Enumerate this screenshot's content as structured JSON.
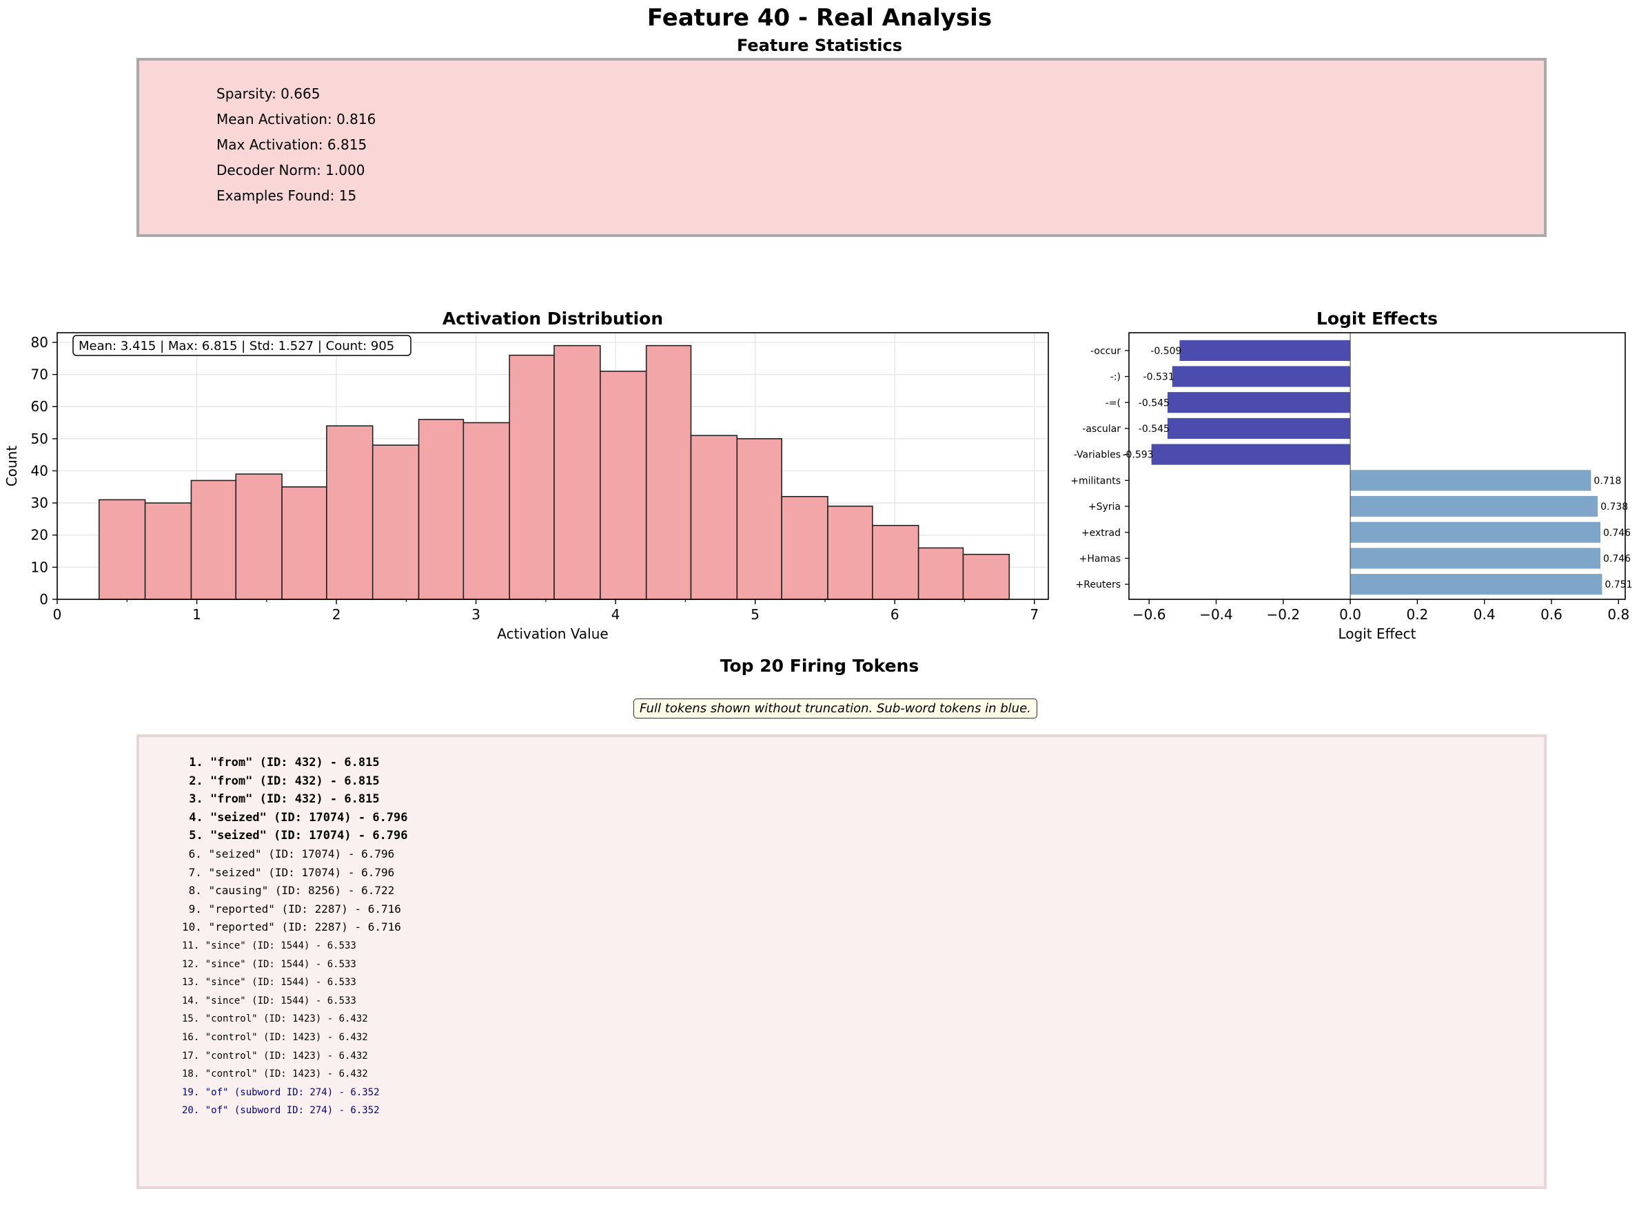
{
  "title": "Feature 40 - Real Analysis",
  "stats": {
    "heading": "Feature Statistics",
    "lines": [
      "Sparsity: 0.665",
      "Mean Activation: 0.816",
      "Max Activation: 6.815",
      "Decoder Norm: 1.000",
      "Examples Found: 15"
    ]
  },
  "chart_data": [
    {
      "type": "bar",
      "title": "Activation Distribution",
      "xlabel": "Activation Value",
      "ylabel": "Count",
      "annotation": "Mean: 3.415 | Max: 6.815 | Std: 1.527 | Count: 905",
      "bin_edges": [
        0.3,
        0.63,
        0.96,
        1.28,
        1.61,
        1.93,
        2.26,
        2.59,
        2.91,
        3.24,
        3.56,
        3.89,
        4.22,
        4.54,
        4.87,
        5.19,
        5.52,
        5.84,
        6.17,
        6.49,
        6.82
      ],
      "values": [
        31,
        30,
        37,
        39,
        35,
        54,
        48,
        56,
        55,
        76,
        79,
        71,
        79,
        51,
        50,
        32,
        29,
        23,
        16,
        14
      ],
      "xlim": [
        0,
        7.1
      ],
      "ylim": [
        0,
        83
      ],
      "xticks": [
        0,
        1,
        2,
        3,
        4,
        5,
        6,
        7
      ],
      "yticks": [
        0,
        10,
        20,
        30,
        40,
        50,
        60,
        70,
        80
      ],
      "grid": true,
      "colors": {
        "bar": "#f2a6a8",
        "edge": "#222222"
      }
    },
    {
      "type": "bar",
      "orientation": "horizontal",
      "title": "Logit Effects",
      "xlabel": "Logit Effect",
      "categories": [
        "-occur",
        "-:)",
        "-=(",
        "-ascular",
        "-Variables",
        "+militants",
        "+Syria",
        "+extrad",
        "+Hamas",
        "+Reuters"
      ],
      "values": [
        -0.509,
        -0.531,
        -0.545,
        -0.545,
        -0.593,
        0.718,
        0.738,
        0.746,
        0.746,
        0.751
      ],
      "value_labels": [
        "-0.509",
        "-0.531",
        "-0.545",
        "-0.545",
        "-0.593",
        "0.718",
        "0.738",
        "0.746",
        "0.746",
        "0.751"
      ],
      "xlim": [
        -0.66,
        0.82
      ],
      "xticks": [
        -0.6,
        -0.4,
        -0.2,
        0.0,
        0.2,
        0.4,
        0.6,
        0.8
      ],
      "xtick_labels": [
        "−0.6",
        "−0.4",
        "−0.2",
        "0.0",
        "0.2",
        "0.4",
        "0.6",
        "0.8"
      ],
      "colors": {
        "negative": "#4b4cad",
        "positive": "#7ea6c9"
      }
    }
  ],
  "tokens": {
    "title": "Top 20 Firing Tokens",
    "note": "Full tokens shown without truncation. Sub-word tokens in blue.",
    "colors": {
      "normal": "#000000",
      "subword": "#00008b"
    },
    "items": [
      {
        "text": " 1. \"from\" (ID: 432) - 6.815",
        "bold": true,
        "size": 17,
        "subword": false
      },
      {
        "text": " 2. \"from\" (ID: 432) - 6.815",
        "bold": true,
        "size": 17,
        "subword": false
      },
      {
        "text": " 3. \"from\" (ID: 432) - 6.815",
        "bold": true,
        "size": 17,
        "subword": false
      },
      {
        "text": " 4. \"seized\" (ID: 17074) - 6.796",
        "bold": true,
        "size": 17,
        "subword": false
      },
      {
        "text": " 5. \"seized\" (ID: 17074) - 6.796",
        "bold": true,
        "size": 17,
        "subword": false
      },
      {
        "text": " 6. \"seized\" (ID: 17074) - 6.796",
        "bold": false,
        "size": 16,
        "subword": false
      },
      {
        "text": " 7. \"seized\" (ID: 17074) - 6.796",
        "bold": false,
        "size": 16,
        "subword": false
      },
      {
        "text": " 8. \"causing\" (ID: 8256) - 6.722",
        "bold": false,
        "size": 16,
        "subword": false
      },
      {
        "text": " 9. \"reported\" (ID: 2287) - 6.716",
        "bold": false,
        "size": 16,
        "subword": false
      },
      {
        "text": "10. \"reported\" (ID: 2287) - 6.716",
        "bold": false,
        "size": 16,
        "subword": false
      },
      {
        "text": "11. \"since\" (ID: 1544) - 6.533",
        "bold": false,
        "size": 14,
        "subword": false
      },
      {
        "text": "12. \"since\" (ID: 1544) - 6.533",
        "bold": false,
        "size": 14,
        "subword": false
      },
      {
        "text": "13. \"since\" (ID: 1544) - 6.533",
        "bold": false,
        "size": 14,
        "subword": false
      },
      {
        "text": "14. \"since\" (ID: 1544) - 6.533",
        "bold": false,
        "size": 14,
        "subword": false
      },
      {
        "text": "15. \"control\" (ID: 1423) - 6.432",
        "bold": false,
        "size": 14,
        "subword": false
      },
      {
        "text": "16. \"control\" (ID: 1423) - 6.432",
        "bold": false,
        "size": 14,
        "subword": false
      },
      {
        "text": "17. \"control\" (ID: 1423) - 6.432",
        "bold": false,
        "size": 14,
        "subword": false
      },
      {
        "text": "18. \"control\" (ID: 1423) - 6.432",
        "bold": false,
        "size": 14,
        "subword": false
      },
      {
        "text": "19. \"of\" (subword ID: 274) - 6.352",
        "bold": false,
        "size": 14,
        "subword": true
      },
      {
        "text": "20. \"of\" (subword ID: 274) - 6.352",
        "bold": false,
        "size": 14,
        "subword": true
      }
    ]
  }
}
